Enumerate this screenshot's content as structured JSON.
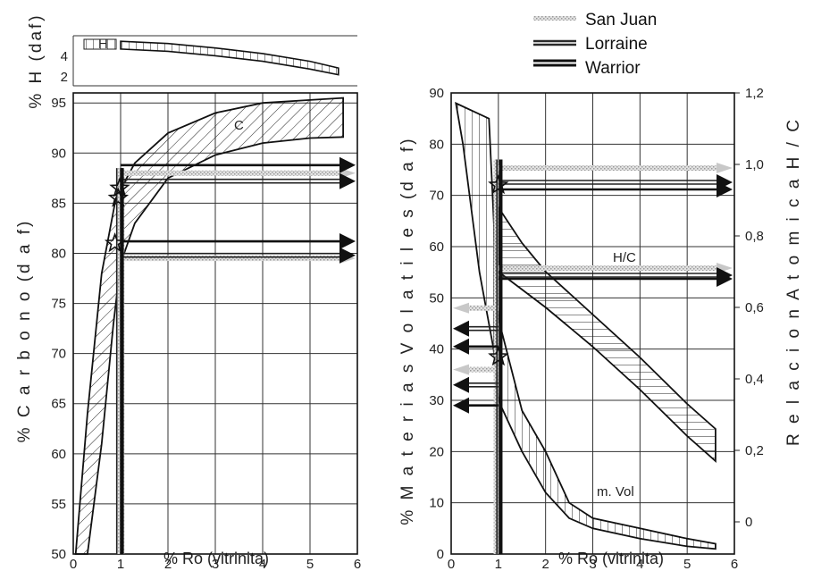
{
  "legend": {
    "items": [
      {
        "name": "San Juan",
        "color": "#bdbdbd",
        "style": "stippled-grey"
      },
      {
        "name": "Lorraine",
        "color": "#2a2a2a",
        "style": "double-line"
      },
      {
        "name": "Warrior",
        "color": "#111111",
        "style": "solid-thick"
      }
    ]
  },
  "chart_data": [
    {
      "id": "hydrogen",
      "type": "area",
      "ylabel": "% H  (daf)",
      "xlim": [
        0,
        6
      ],
      "ylim": [
        1,
        5.5
      ],
      "yticks": [
        "4",
        "2"
      ],
      "band_label": "H",
      "band_upper": [
        [
          1,
          5.0
        ],
        [
          2,
          4.8
        ],
        [
          3,
          4.4
        ],
        [
          4,
          3.9
        ],
        [
          5,
          3.2
        ],
        [
          5.6,
          2.6
        ]
      ],
      "band_lower": [
        [
          1,
          4.3
        ],
        [
          2,
          4.1
        ],
        [
          3,
          3.7
        ],
        [
          4,
          3.2
        ],
        [
          5,
          2.5
        ],
        [
          5.6,
          2.0
        ]
      ]
    },
    {
      "id": "carbon",
      "type": "area",
      "xlabel": "%  Ro  (vitrinita)",
      "ylabel": "%  C a r b o n o   (d a f)",
      "xlim": [
        0,
        6
      ],
      "ylim": [
        50,
        96
      ],
      "xticks": [
        "0",
        "1",
        "2",
        "3",
        "4",
        "5",
        "6"
      ],
      "yticks": [
        "95",
        "90",
        "85",
        "80",
        "75",
        "70",
        "65",
        "60",
        "55",
        "50"
      ],
      "band_label": "C",
      "band_upper": [
        [
          0.05,
          50
        ],
        [
          0.3,
          64
        ],
        [
          0.6,
          78
        ],
        [
          0.9,
          85.5
        ],
        [
          1.3,
          89
        ],
        [
          2,
          92
        ],
        [
          3,
          94
        ],
        [
          4,
          95
        ],
        [
          5,
          95.3
        ],
        [
          5.7,
          95.5
        ]
      ],
      "band_lower": [
        [
          0.3,
          50
        ],
        [
          0.6,
          61
        ],
        [
          0.85,
          73
        ],
        [
          1.0,
          79
        ],
        [
          1.3,
          83
        ],
        [
          2,
          87.5
        ],
        [
          3,
          89.8
        ],
        [
          4,
          91
        ],
        [
          5,
          91.5
        ],
        [
          5.7,
          91.6
        ]
      ],
      "series": [
        {
          "name": "San Juan",
          "ro": [
            0.92,
            1.08
          ],
          "markers": [
            {
              "x": 0.95,
              "y": 85.5
            }
          ],
          "arrows_y": [
            88,
            79.5
          ]
        },
        {
          "name": "Lorraine",
          "ro": [
            0.9,
            1.02
          ],
          "markers": [
            {
              "x": 0.88,
              "y": 81
            }
          ],
          "arrows_y": [
            87.2,
            79.8
          ]
        },
        {
          "name": "Warrior",
          "ro": [
            0.98,
            1.06
          ],
          "markers": [
            {
              "x": 0.98,
              "y": 86.5
            }
          ],
          "arrows_y": [
            88.8,
            81.2
          ]
        }
      ]
    },
    {
      "id": "volatiles",
      "type": "area",
      "xlabel": "%  Ro  (vitrinita)",
      "ylabel": "%  M a t e r i a s   V o l a t i l e s   (d a f)",
      "y2label": "R e l a c i o n   A t o m i c a   H / C",
      "xlim": [
        0,
        6
      ],
      "ylim": [
        0,
        90
      ],
      "y2lim": [
        -0.09,
        1.2
      ],
      "xticks": [
        "0",
        "1",
        "2",
        "3",
        "4",
        "5",
        "6"
      ],
      "yticks": [
        "90",
        "80",
        "70",
        "60",
        "50",
        "40",
        "30",
        "20",
        "10",
        "0"
      ],
      "y2ticks": [
        "1,2",
        "1,0",
        "0,8",
        "0,6",
        "0,4",
        "0,2",
        "0"
      ],
      "y2tick_values": [
        1.2,
        1.0,
        0.8,
        0.6,
        0.4,
        0.2,
        0
      ],
      "hc_label": "H/C",
      "hc_upper": [
        [
          1.0,
          0.88
        ],
        [
          1.5,
          0.78
        ],
        [
          2,
          0.7
        ],
        [
          3,
          0.58
        ],
        [
          4,
          0.46
        ],
        [
          5,
          0.33
        ],
        [
          5.6,
          0.26
        ]
      ],
      "hc_lower": [
        [
          1.0,
          0.7
        ],
        [
          1.5,
          0.65
        ],
        [
          2,
          0.6
        ],
        [
          3,
          0.49
        ],
        [
          4,
          0.37
        ],
        [
          5,
          0.24
        ],
        [
          5.6,
          0.17
        ]
      ],
      "vol_label": "m. Vol",
      "vol_upper": [
        [
          0.1,
          88
        ],
        [
          0.8,
          85
        ],
        [
          1.0,
          46
        ],
        [
          1.5,
          28
        ],
        [
          2,
          20
        ],
        [
          2.5,
          10
        ],
        [
          3,
          7
        ],
        [
          4,
          5
        ],
        [
          5,
          3
        ],
        [
          5.6,
          2
        ]
      ],
      "vol_lower": [
        [
          0.1,
          88
        ],
        [
          0.25,
          80
        ],
        [
          0.6,
          55
        ],
        [
          0.9,
          40
        ],
        [
          1.0,
          30
        ],
        [
          1.5,
          20
        ],
        [
          2,
          12
        ],
        [
          2.5,
          7
        ],
        [
          3,
          5
        ],
        [
          4,
          3
        ],
        [
          5,
          1.5
        ],
        [
          5.6,
          1
        ]
      ],
      "series": [
        {
          "name": "San Juan",
          "ro": [
            0.9,
            1.0
          ],
          "markers": [],
          "vol_arrows": [
            48,
            36
          ],
          "hc_arrows": [
            0.99,
            0.71
          ]
        },
        {
          "name": "Lorraine",
          "ro": [
            0.95,
            1.05
          ],
          "markers": [
            {
              "x": 1.0,
              "y": 38.5
            }
          ],
          "vol_arrows": [
            44,
            33
          ],
          "hc_arrows": [
            0.95,
            0.69
          ]
        },
        {
          "name": "Warrior",
          "ro": [
            1.0,
            1.08
          ],
          "markers": [
            {
              "x": 1.0,
              "y": 72
            }
          ],
          "vol_arrows": [
            40.5,
            29
          ],
          "hc_arrows": [
            0.93,
            0.68
          ]
        }
      ]
    }
  ]
}
